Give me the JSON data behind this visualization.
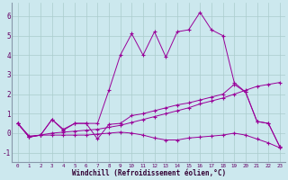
{
  "xlabel": "Windchill (Refroidissement éolien,°C)",
  "background_color": "#cce8ee",
  "line_color": "#990099",
  "grid_color": "#aacccc",
  "xlim": [
    -0.5,
    23.5
  ],
  "ylim": [
    -1.5,
    6.7
  ],
  "xticks": [
    0,
    1,
    2,
    3,
    4,
    5,
    6,
    7,
    8,
    9,
    10,
    11,
    12,
    13,
    14,
    15,
    16,
    17,
    18,
    19,
    20,
    21,
    22,
    23
  ],
  "yticks": [
    -1,
    0,
    1,
    2,
    3,
    4,
    5,
    6
  ],
  "line1_y": [
    0.5,
    -0.2,
    -0.1,
    0.7,
    0.15,
    0.5,
    0.5,
    0.5,
    2.2,
    4.0,
    5.1,
    4.0,
    5.2,
    3.9,
    5.2,
    5.3,
    6.2,
    5.3,
    5.0,
    2.6,
    2.1,
    0.6,
    0.5,
    -0.7
  ],
  "line2_y": [
    0.5,
    -0.2,
    -0.1,
    0.7,
    0.2,
    0.5,
    0.5,
    -0.3,
    0.45,
    0.5,
    0.9,
    1.0,
    1.15,
    1.3,
    1.45,
    1.55,
    1.7,
    1.85,
    2.0,
    2.5,
    2.1,
    0.6,
    0.5,
    -0.7
  ],
  "line3_y": [
    0.5,
    -0.15,
    -0.1,
    0.0,
    0.05,
    0.1,
    0.15,
    0.2,
    0.3,
    0.4,
    0.55,
    0.7,
    0.85,
    1.0,
    1.15,
    1.3,
    1.5,
    1.65,
    1.8,
    2.0,
    2.2,
    2.4,
    2.5,
    2.6
  ],
  "line4_y": [
    0.5,
    -0.2,
    -0.1,
    -0.1,
    -0.1,
    -0.1,
    -0.1,
    -0.05,
    0.0,
    0.05,
    0.0,
    -0.1,
    -0.25,
    -0.35,
    -0.35,
    -0.25,
    -0.2,
    -0.15,
    -0.1,
    0.0,
    -0.1,
    -0.3,
    -0.5,
    -0.75
  ]
}
